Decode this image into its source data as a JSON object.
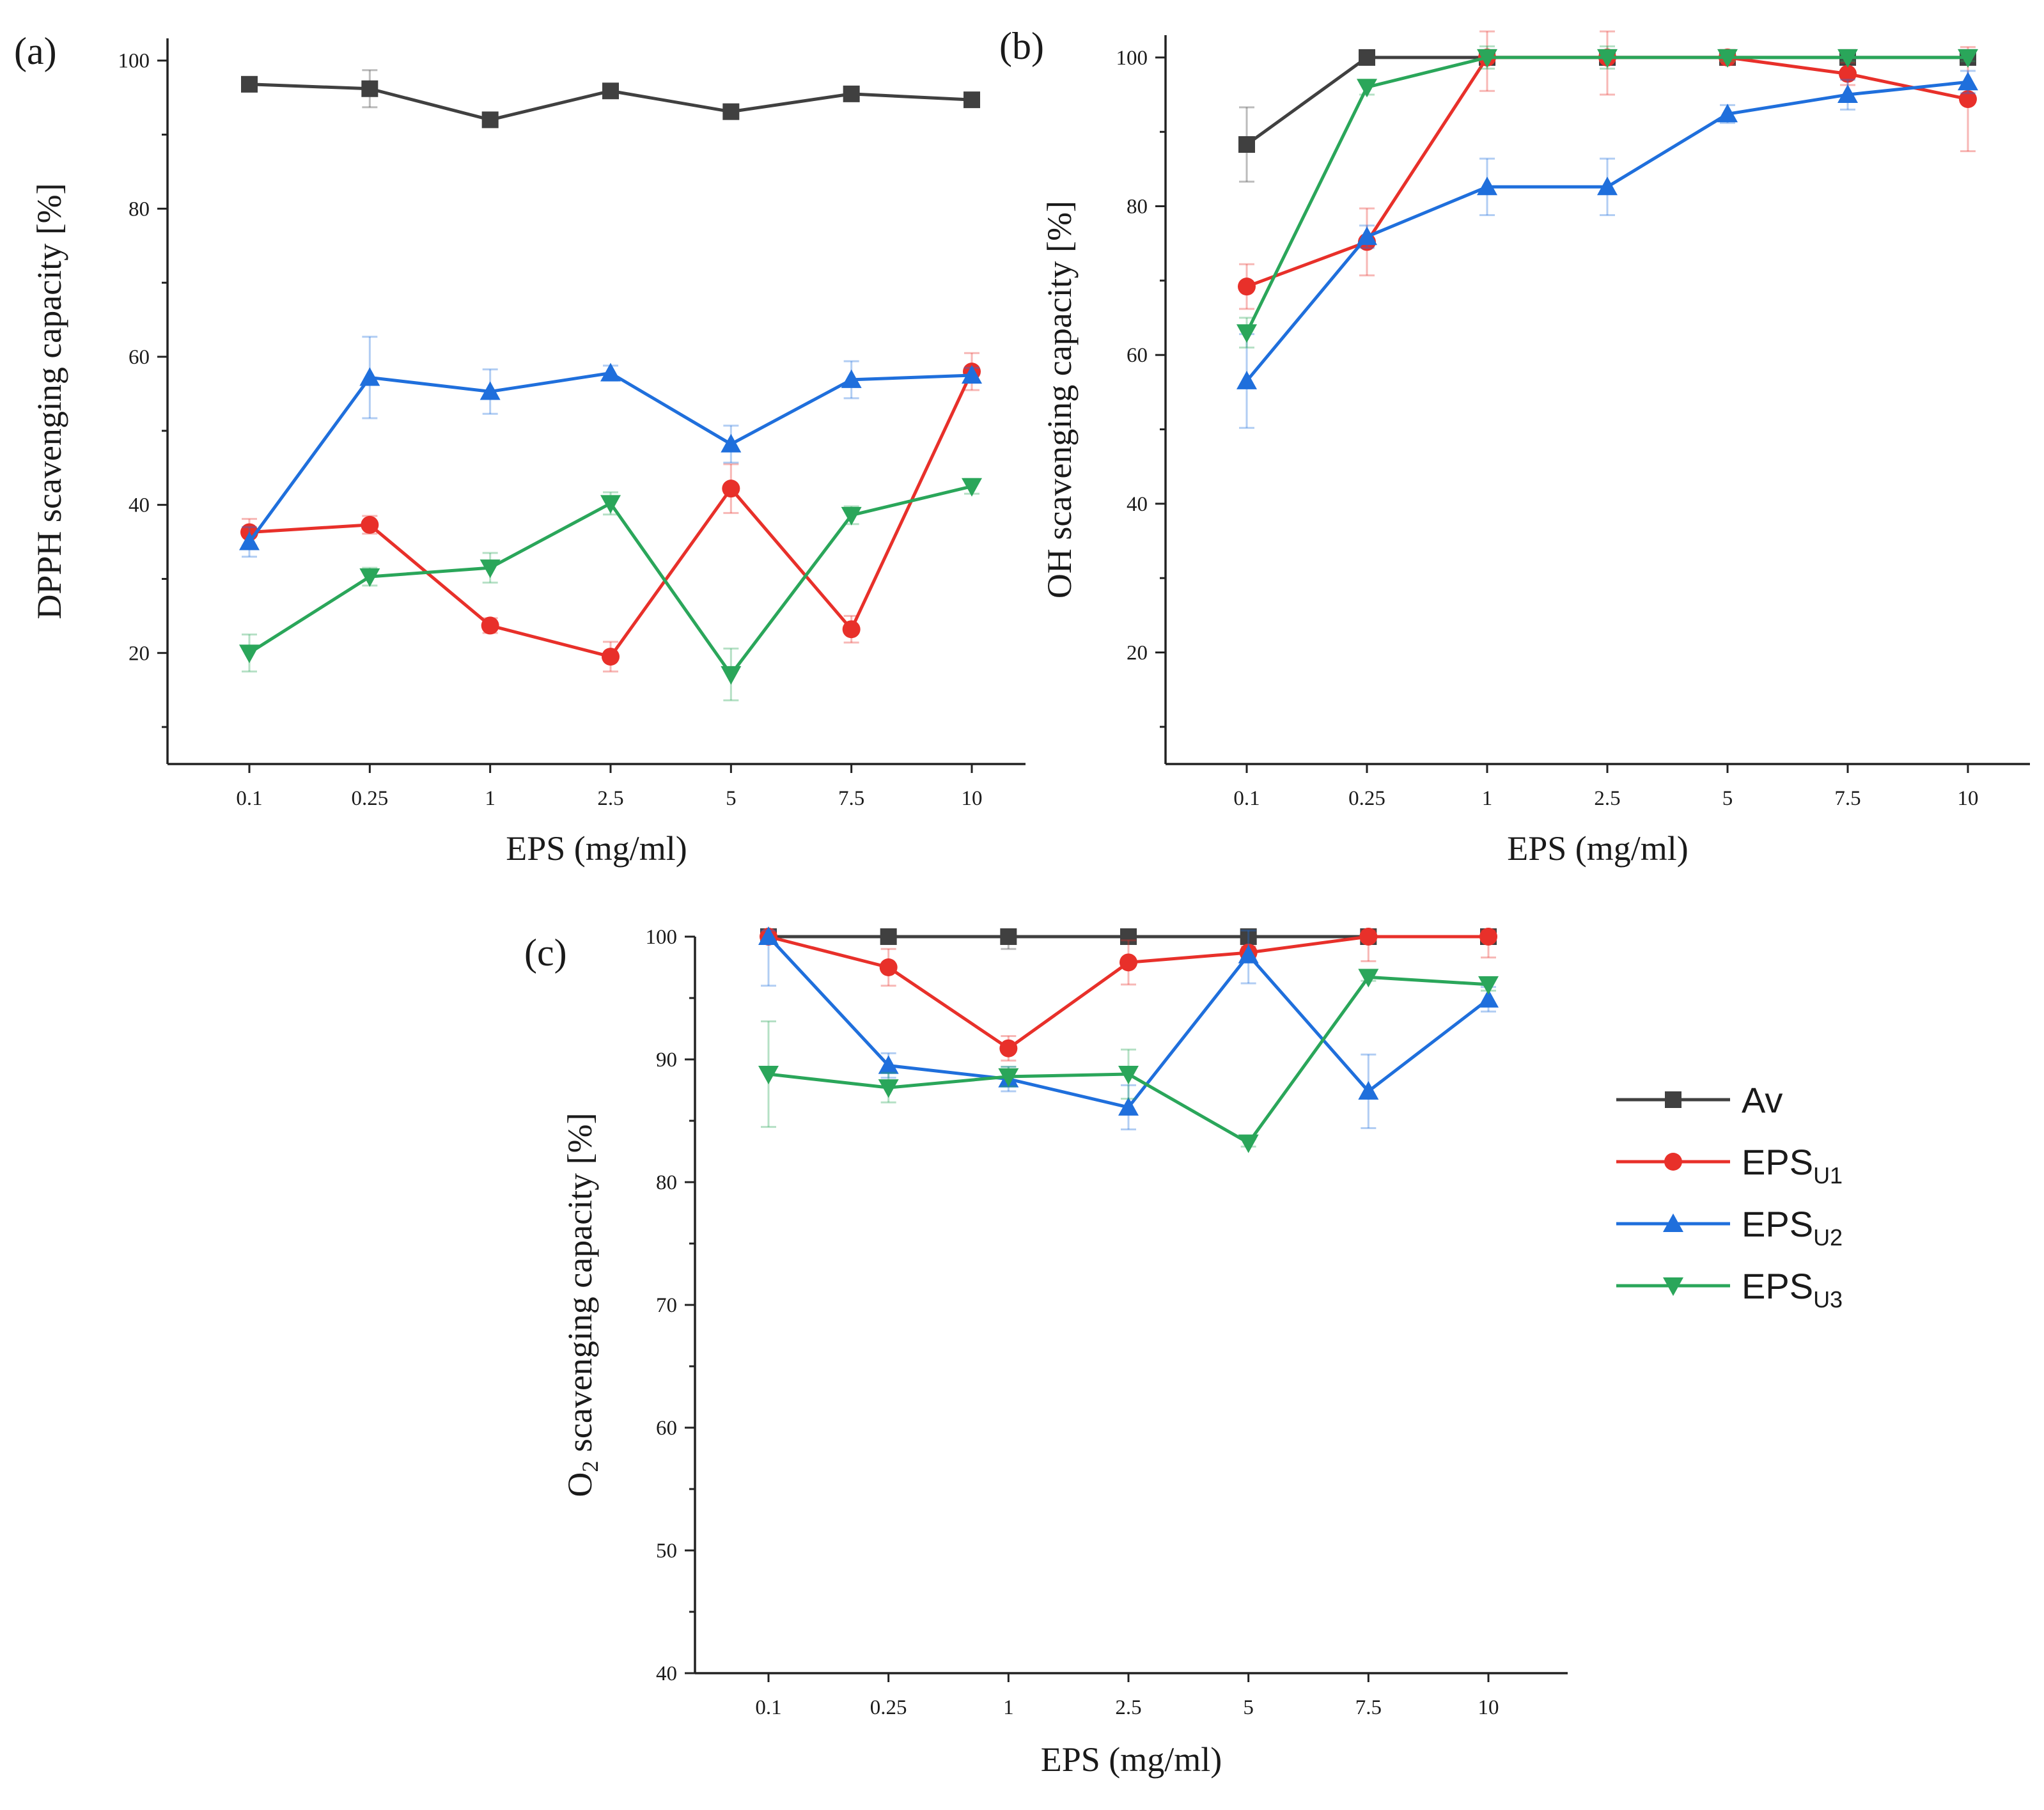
{
  "colors": {
    "Av": "#404040",
    "EPS_U1": "#e8302a",
    "EPS_U2": "#1f6fdc",
    "EPS_U3": "#2aa65a"
  },
  "legend": [
    {
      "key": "Av",
      "text": "Av",
      "sub": "",
      "marker": "square"
    },
    {
      "key": "EPS_U1",
      "text": "EPS",
      "sub": "U1",
      "marker": "circle"
    },
    {
      "key": "EPS_U2",
      "text": "EPS",
      "sub": "U2",
      "marker": "triangle-up"
    },
    {
      "key": "EPS_U3",
      "text": "EPS",
      "sub": "U3",
      "marker": "triangle-down"
    }
  ],
  "chart_data": [
    {
      "panel": "(a)",
      "type": "line",
      "title": "",
      "xlabel": "EPS (mg/ml)",
      "ylabel": "DPPH scavenging capacity [%]",
      "ylim": [
        5,
        103
      ],
      "yticks": [
        20,
        40,
        60,
        80,
        100
      ],
      "categories": [
        "0.1",
        "0.25",
        "1",
        "2.5",
        "5",
        "7.5",
        "10"
      ],
      "series": [
        {
          "key": "Av",
          "name": "Av",
          "values": [
            96.8,
            96.2,
            92,
            95.9,
            93.1,
            95.5,
            94.7
          ],
          "errors": [
            0.8,
            2.5,
            0.8,
            0.8,
            0.8,
            0.8,
            0.8
          ]
        },
        {
          "key": "EPS_U1",
          "name": "EPS U1",
          "values": [
            36.3,
            37.3,
            23.7,
            19.5,
            42.2,
            23.2,
            58.0
          ],
          "errors": [
            1.8,
            1.2,
            1.0,
            2.0,
            3.3,
            1.8,
            2.5
          ]
        },
        {
          "key": "EPS_U2",
          "name": "EPS U2",
          "values": [
            35.0,
            57.2,
            55.3,
            57.8,
            48.2,
            56.9,
            57.5
          ],
          "errors": [
            2.0,
            5.5,
            3.0,
            1.0,
            2.5,
            2.5,
            1.0
          ]
        },
        {
          "key": "EPS_U3",
          "name": "EPS U3",
          "values": [
            20.0,
            30.3,
            31.5,
            40.2,
            17.1,
            38.6,
            42.5
          ],
          "errors": [
            2.5,
            1.2,
            2.0,
            1.5,
            3.5,
            1.2,
            1.0
          ]
        }
      ]
    },
    {
      "panel": "(b)",
      "type": "line",
      "title": "",
      "xlabel": "EPS (mg/ml)",
      "ylabel": "OH scavenging capacity [%]",
      "ylim": [
        5,
        103
      ],
      "yticks": [
        20,
        40,
        60,
        80,
        100
      ],
      "categories": [
        "0.1",
        "0.25",
        "1",
        "2.5",
        "5",
        "7.5",
        "10"
      ],
      "series": [
        {
          "key": "Av",
          "name": "Av",
          "values": [
            88.3,
            100,
            100,
            100,
            100,
            100,
            100
          ],
          "errors": [
            5.0,
            0.5,
            0.5,
            0.5,
            0.5,
            0.5,
            0.5
          ]
        },
        {
          "key": "EPS_U1",
          "name": "EPS U1",
          "values": [
            69.2,
            75.2,
            100,
            100,
            100,
            97.8,
            94.4
          ],
          "errors": [
            3.0,
            4.5,
            4.5,
            5.0,
            1.0,
            1.5,
            7.0
          ]
        },
        {
          "key": "EPS_U2",
          "name": "EPS U2",
          "values": [
            56.5,
            75.9,
            82.6,
            82.6,
            92.4,
            95.0,
            96.7
          ],
          "errors": [
            6.3,
            1.5,
            3.8,
            3.8,
            1.2,
            2.0,
            1.5
          ]
        },
        {
          "key": "EPS_U3",
          "name": "EPS U3",
          "values": [
            63.0,
            96.0,
            100,
            100,
            100,
            100,
            100
          ],
          "errors": [
            2.0,
            1.0,
            1.5,
            1.5,
            0.5,
            0.5,
            0.5
          ]
        }
      ]
    },
    {
      "panel": "(c)",
      "type": "line",
      "title": "",
      "xlabel": "EPS (mg/ml)",
      "ylabel_main": "O",
      "ylabel_sub": "2",
      "ylabel_rest": " scavenging capacity [%]",
      "ylim": [
        40,
        100
      ],
      "yticks": [
        40,
        50,
        60,
        70,
        80,
        90,
        100
      ],
      "categories": [
        "0.1",
        "0.25",
        "1",
        "2.5",
        "5",
        "7.5",
        "10"
      ],
      "series": [
        {
          "key": "Av",
          "name": "Av",
          "values": [
            100,
            100,
            100,
            100,
            100,
            100,
            100
          ],
          "errors": [
            0.3,
            0.3,
            1.0,
            0.3,
            0.3,
            0.3,
            0.3
          ]
        },
        {
          "key": "EPS_U1",
          "name": "EPS U1",
          "values": [
            100,
            97.5,
            90.9,
            97.9,
            98.7,
            100,
            100
          ],
          "errors": [
            0.3,
            1.5,
            1.0,
            1.8,
            0.5,
            2.0,
            1.7
          ]
        },
        {
          "key": "EPS_U2",
          "name": "EPS U2",
          "values": [
            100,
            89.5,
            88.4,
            86.1,
            98.5,
            87.4,
            94.9
          ],
          "errors": [
            4.0,
            1.0,
            1.0,
            1.8,
            2.3,
            3.0,
            1.0
          ]
        },
        {
          "key": "EPS_U3",
          "name": "EPS U3",
          "values": [
            88.8,
            87.7,
            88.6,
            88.8,
            83.2,
            96.7,
            96.1
          ],
          "errors": [
            4.3,
            1.2,
            0.8,
            2.0,
            0.3,
            0.3,
            0.5
          ]
        }
      ]
    }
  ]
}
